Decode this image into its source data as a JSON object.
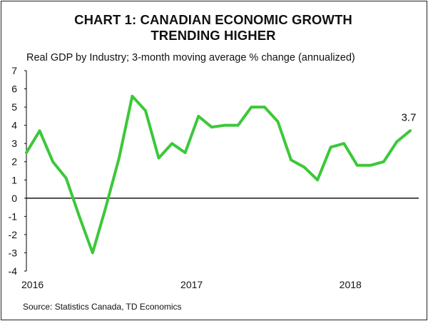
{
  "chart_data": {
    "type": "line",
    "title_lines": [
      "CHART 1: CANADIAN ECONOMIC GROWTH",
      "TRENDING HIGHER"
    ],
    "subtitle": "Real GDP by Industry; 3-month moving average % change (annualized)",
    "source": "Source: Statistics Canada, TD Economics",
    "ylim": [
      -4,
      7
    ],
    "y_ticks": [
      "7",
      "6",
      "5",
      "4",
      "3",
      "2",
      "1",
      "0",
      "-1",
      "-2",
      "-3",
      "-4"
    ],
    "x_ticks": [
      "2016",
      "2017",
      "2018"
    ],
    "series": [
      {
        "name": "Real GDP 3-month moving average % change (annualized)",
        "color": "#3cc83a",
        "values": [
          2.5,
          3.7,
          2.0,
          1.1,
          -1.0,
          -3.0,
          -0.5,
          2.2,
          5.6,
          4.8,
          2.2,
          3.0,
          2.5,
          4.5,
          3.9,
          4.0,
          4.0,
          5.0,
          5.0,
          4.2,
          2.1,
          1.7,
          1.0,
          2.8,
          3.0,
          1.8,
          1.8,
          2.0,
          3.1,
          3.7
        ]
      }
    ],
    "annotation": "3.7",
    "grid": false
  }
}
